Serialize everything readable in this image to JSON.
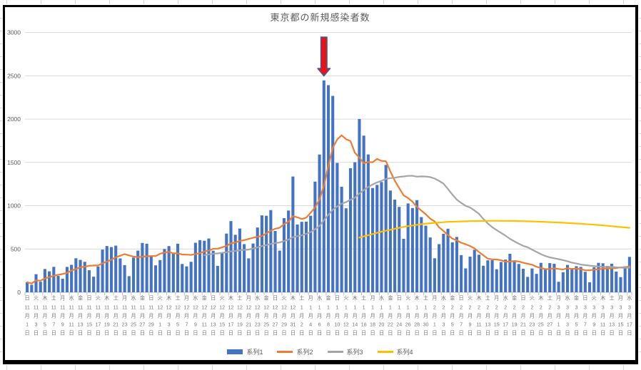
{
  "chart": {
    "object_border_color": "#000000",
    "background": "#ffffff"
  },
  "chart_data": {
    "type": "combo",
    "title": "東京都の新規感染者数",
    "ylim": [
      0,
      3000
    ],
    "yticks": [
      0,
      500,
      1000,
      1500,
      2000,
      2500,
      3000
    ],
    "grid": "horizontal",
    "legend_position": "bottom",
    "x_range": "11月1日〜3月17日 (毎日, ラベルは2日毎)",
    "x_labels": [
      {
        "dow": "日",
        "m": 11,
        "d": 1
      },
      {
        "dow": "火",
        "m": 11,
        "d": 3
      },
      {
        "dow": "木",
        "m": 11,
        "d": 5
      },
      {
        "dow": "土",
        "m": 11,
        "d": 7
      },
      {
        "dow": "月",
        "m": 11,
        "d": 9
      },
      {
        "dow": "水",
        "m": 11,
        "d": 11
      },
      {
        "dow": "金",
        "m": 11,
        "d": 13
      },
      {
        "dow": "日",
        "m": 11,
        "d": 15
      },
      {
        "dow": "火",
        "m": 11,
        "d": 17
      },
      {
        "dow": "木",
        "m": 11,
        "d": 19
      },
      {
        "dow": "土",
        "m": 11,
        "d": 21
      },
      {
        "dow": "月",
        "m": 11,
        "d": 23
      },
      {
        "dow": "水",
        "m": 11,
        "d": 25
      },
      {
        "dow": "金",
        "m": 11,
        "d": 27
      },
      {
        "dow": "日",
        "m": 11,
        "d": 29
      },
      {
        "dow": "火",
        "m": 12,
        "d": 1
      },
      {
        "dow": "木",
        "m": 12,
        "d": 3
      },
      {
        "dow": "土",
        "m": 12,
        "d": 5
      },
      {
        "dow": "月",
        "m": 12,
        "d": 7
      },
      {
        "dow": "水",
        "m": 12,
        "d": 9
      },
      {
        "dow": "金",
        "m": 12,
        "d": 11
      },
      {
        "dow": "日",
        "m": 12,
        "d": 13
      },
      {
        "dow": "火",
        "m": 12,
        "d": 15
      },
      {
        "dow": "木",
        "m": 12,
        "d": 17
      },
      {
        "dow": "土",
        "m": 12,
        "d": 19
      },
      {
        "dow": "月",
        "m": 12,
        "d": 21
      },
      {
        "dow": "水",
        "m": 12,
        "d": 23
      },
      {
        "dow": "金",
        "m": 12,
        "d": 25
      },
      {
        "dow": "日",
        "m": 12,
        "d": 27
      },
      {
        "dow": "火",
        "m": 12,
        "d": 29
      },
      {
        "dow": "木",
        "m": 12,
        "d": 31
      },
      {
        "dow": "土",
        "m": 1,
        "d": 2
      },
      {
        "dow": "月",
        "m": 1,
        "d": 4
      },
      {
        "dow": "水",
        "m": 1,
        "d": 6
      },
      {
        "dow": "金",
        "m": 1,
        "d": 8
      },
      {
        "dow": "日",
        "m": 1,
        "d": 10
      },
      {
        "dow": "火",
        "m": 1,
        "d": 12
      },
      {
        "dow": "木",
        "m": 1,
        "d": 14
      },
      {
        "dow": "土",
        "m": 1,
        "d": 16
      },
      {
        "dow": "月",
        "m": 1,
        "d": 18
      },
      {
        "dow": "水",
        "m": 1,
        "d": 20
      },
      {
        "dow": "金",
        "m": 1,
        "d": 22
      },
      {
        "dow": "日",
        "m": 1,
        "d": 24
      },
      {
        "dow": "火",
        "m": 1,
        "d": 26
      },
      {
        "dow": "木",
        "m": 1,
        "d": 28
      },
      {
        "dow": "土",
        "m": 1,
        "d": 30
      },
      {
        "dow": "月",
        "m": 2,
        "d": 1
      },
      {
        "dow": "水",
        "m": 2,
        "d": 3
      },
      {
        "dow": "金",
        "m": 2,
        "d": 5
      },
      {
        "dow": "日",
        "m": 2,
        "d": 7
      },
      {
        "dow": "火",
        "m": 2,
        "d": 9
      },
      {
        "dow": "木",
        "m": 2,
        "d": 11
      },
      {
        "dow": "土",
        "m": 2,
        "d": 13
      },
      {
        "dow": "月",
        "m": 2,
        "d": 15
      },
      {
        "dow": "水",
        "m": 2,
        "d": 17
      },
      {
        "dow": "金",
        "m": 2,
        "d": 19
      },
      {
        "dow": "日",
        "m": 2,
        "d": 21
      },
      {
        "dow": "火",
        "m": 2,
        "d": 23
      },
      {
        "dow": "木",
        "m": 2,
        "d": 25
      },
      {
        "dow": "土",
        "m": 2,
        "d": 27
      },
      {
        "dow": "月",
        "m": 3,
        "d": 1
      },
      {
        "dow": "水",
        "m": 3,
        "d": 3
      },
      {
        "dow": "金",
        "m": 3,
        "d": 5
      },
      {
        "dow": "日",
        "m": 3,
        "d": 7
      },
      {
        "dow": "火",
        "m": 3,
        "d": 9
      },
      {
        "dow": "木",
        "m": 3,
        "d": 11
      },
      {
        "dow": "土",
        "m": 3,
        "d": 13
      },
      {
        "dow": "月",
        "m": 3,
        "d": 15
      },
      {
        "dow": "水",
        "m": 3,
        "d": 17
      }
    ],
    "series": [
      {
        "name": "系列1",
        "type": "bar",
        "color": "#4472C4",
        "values": [
          116,
          87,
          209,
          122,
          269,
          242,
          294,
          189,
          157,
          293,
          317,
          393,
          374,
          352,
          255,
          180,
          298,
          493,
          534,
          522,
          539,
          391,
          314,
          186,
          401,
          481,
          570,
          561,
          418,
          311,
          372,
          500,
          533,
          449,
          561,
          327,
          299,
          352,
          572,
          602,
          595,
          621,
          480,
          305,
          460,
          678,
          822,
          664,
          736,
          556,
          392,
          563,
          748,
          888,
          884,
          949,
          708,
          481,
          856,
          944,
          1337,
          783,
          814,
          816,
          884,
          1278,
          1591,
          2447,
          2392,
          2268,
          1494,
          1219,
          970,
          1433,
          1502,
          2001,
          1809,
          1592,
          1204,
          1240,
          1274,
          1471,
          1175,
          1070,
          986,
          618,
          1026,
          973,
          1064,
          868,
          769,
          633,
          393,
          556,
          676,
          734,
          577,
          639,
          429,
          276,
          412,
          491,
          434,
          307,
          369,
          371,
          266,
          350,
          378,
          445,
          353,
          327,
          272,
          178,
          275,
          213,
          340,
          270,
          337,
          329,
          121,
          232,
          316,
          279,
          301,
          293,
          237,
          116,
          290,
          340,
          335,
          304,
          330,
          239,
          175,
          300,
          409
        ]
      },
      {
        "name": "系列2",
        "type": "line",
        "color": "#ED7D31",
        "derivation": "7-day moving average of 系列1"
      },
      {
        "name": "系列3",
        "type": "line",
        "color": "#A5A5A5",
        "derivation": "28-day moving average of 系列1",
        "start_index": 40
      },
      {
        "name": "系列4",
        "type": "line",
        "color": "#FFC000",
        "points": [
          [
            75,
            632
          ],
          [
            80,
            700
          ],
          [
            85,
            756
          ],
          [
            90,
            794
          ],
          [
            95,
            813
          ],
          [
            100,
            822
          ],
          [
            105,
            826
          ],
          [
            110,
            824
          ],
          [
            115,
            817
          ],
          [
            120,
            806
          ],
          [
            125,
            792
          ],
          [
            130,
            773
          ],
          [
            136,
            744
          ]
        ]
      }
    ],
    "annotation_arrow": {
      "shape": "down-block-arrow",
      "index": 67,
      "points_at_value": 2447,
      "fill": "#ee1111",
      "outline": "#3f5d9b"
    }
  },
  "axis_style": {
    "gridline_color": "#d9d9d9",
    "axis_line_color": "#bfbfbf",
    "y_label_color": "#595959",
    "x_label_color": "#757575"
  }
}
